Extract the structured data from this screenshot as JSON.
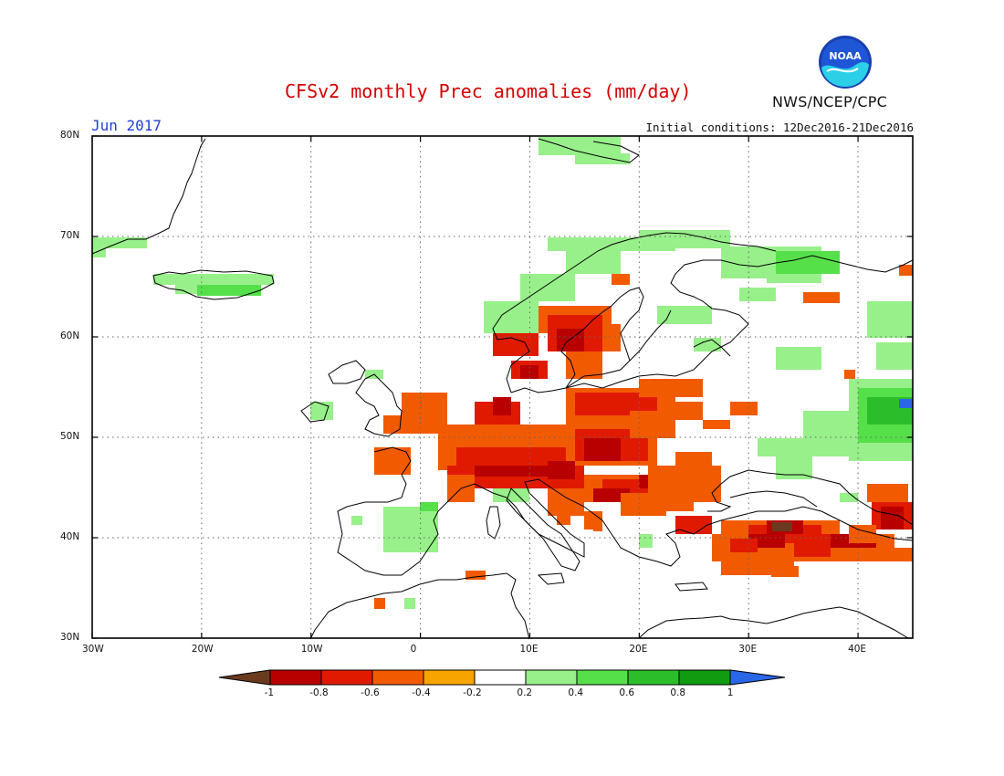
{
  "header": {
    "title": "CFSv2 monthly Prec anomalies (mm/day)",
    "month": "Jun 2017",
    "initial_conditions": "Initial conditions: 12Dec2016-21Dec2016",
    "agency": "NWS/NCEP/CPC",
    "logo_text": "NOAA"
  },
  "map": {
    "region": "Europe",
    "lon_range": [
      -30,
      45
    ],
    "lat_range": [
      30,
      80
    ],
    "x_ticks": [
      "30W",
      "20W",
      "10W",
      "0",
      "10E",
      "20E",
      "30E",
      "40E"
    ],
    "y_ticks": [
      "30N",
      "40N",
      "50N",
      "60N",
      "70N",
      "80N"
    ],
    "grid": "dotted"
  },
  "colorbar": {
    "labels": [
      "-1",
      "-0.8",
      "-0.6",
      "-0.4",
      "-0.2",
      "0.2",
      "0.4",
      "0.6",
      "0.8",
      "1"
    ],
    "colors": [
      "#6b3a1e",
      "#b80000",
      "#e01a00",
      "#f25a00",
      "#f7a300",
      "#ffffff",
      "#98f08a",
      "#55e04a",
      "#2cbd2a",
      "#109b10",
      "#2a66e8"
    ]
  },
  "anomaly_colors": {
    "dry_extreme": "#6b3a1e",
    "dry_strong": "#b80000",
    "dry_mod": "#e01a00",
    "dry_light": "#f25a00",
    "dry_weak": "#f7a300",
    "wet_weak": "#98f08a",
    "wet_light": "#55e04a",
    "wet_mod": "#2cbd2a",
    "wet_strong": "#109b10",
    "wet_extreme": "#2a66e8"
  },
  "regions": [
    {
      "name": "norway-coast-wet",
      "category": "wet_weak"
    },
    {
      "name": "russia-wet",
      "category": "wet_light"
    },
    {
      "name": "sweden-dry",
      "category": "dry_mod"
    },
    {
      "name": "central-europe-dry",
      "category": "dry_light"
    },
    {
      "name": "alps-dry",
      "category": "dry_strong"
    },
    {
      "name": "turkey-dry",
      "category": "dry_mod"
    },
    {
      "name": "turkey-extreme-dry",
      "category": "dry_extreme"
    },
    {
      "name": "volga-wet-extreme",
      "category": "wet_extreme"
    }
  ]
}
